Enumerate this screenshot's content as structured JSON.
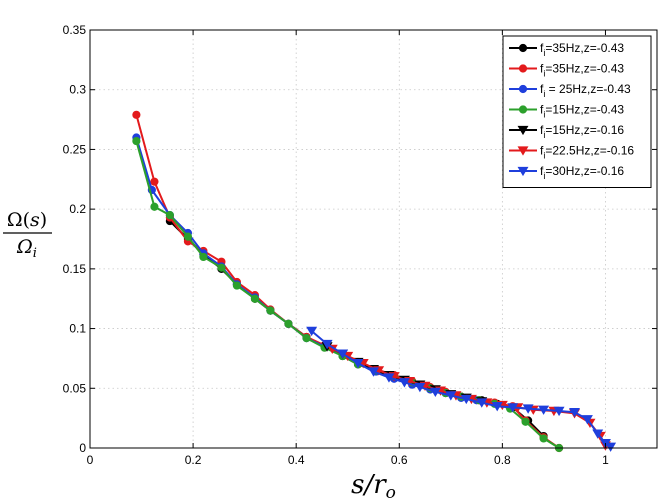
{
  "chart_data": {
    "type": "line",
    "xlim": [
      0,
      1.1
    ],
    "ylim": [
      0,
      0.35
    ],
    "xticks": [
      0,
      0.2,
      0.4,
      0.6,
      0.8,
      1
    ],
    "yticks": [
      0,
      0.05,
      0.1,
      0.15,
      0.2,
      0.25,
      0.3,
      0.35
    ],
    "xtick_labels": [
      "0",
      "0.2",
      "0.4",
      "0.6",
      "0.8",
      "1"
    ],
    "ytick_labels": [
      "0",
      "0.05",
      "0.1",
      "0.15",
      "0.2",
      "0.25",
      "0.3",
      "0.35"
    ],
    "grid": true,
    "legend_position": "top-right",
    "xlabel": "s/r_o",
    "ylabel_num": "Ω(s)",
    "ylabel_den": "Ω_i",
    "series": [
      {
        "name": "f_i=35Hz,z=-0.43",
        "color": "#000000",
        "marker": "circle",
        "x": [
          0.155,
          0.19,
          0.22,
          0.255,
          0.285,
          0.32,
          0.35,
          0.385,
          0.42,
          0.455,
          0.49,
          0.52,
          0.555,
          0.59,
          0.625,
          0.66,
          0.69,
          0.72,
          0.76,
          0.79,
          0.82,
          0.85,
          0.88
        ],
        "y": [
          0.19,
          0.175,
          0.162,
          0.15,
          0.137,
          0.125,
          0.115,
          0.104,
          0.093,
          0.085,
          0.077,
          0.07,
          0.065,
          0.059,
          0.055,
          0.05,
          0.046,
          0.043,
          0.04,
          0.037,
          0.034,
          0.023,
          0.01
        ]
      },
      {
        "name": "f_i=35Hz,z=-0.43",
        "color": "#e31a1c",
        "marker": "circle",
        "x": [
          0.09,
          0.125,
          0.155,
          0.19,
          0.22,
          0.255,
          0.285,
          0.32,
          0.35,
          0.385,
          0.42,
          0.455,
          0.49,
          0.52,
          0.555,
          0.59,
          0.625,
          0.66,
          0.69,
          0.72,
          0.755,
          0.785,
          0.82,
          0.845,
          0.88,
          0.91
        ],
        "y": [
          0.279,
          0.223,
          0.193,
          0.173,
          0.165,
          0.156,
          0.139,
          0.128,
          0.116,
          0.104,
          0.093,
          0.086,
          0.079,
          0.072,
          0.066,
          0.061,
          0.056,
          0.051,
          0.047,
          0.043,
          0.04,
          0.038,
          0.035,
          0.023,
          0.009,
          0.0
        ]
      },
      {
        "name": "f_i = 25Hz,z=-0.43",
        "color": "#1f3fdc",
        "marker": "circle",
        "x": [
          0.09,
          0.12,
          0.155,
          0.19,
          0.22,
          0.255,
          0.285,
          0.32,
          0.35,
          0.385,
          0.42,
          0.455,
          0.49,
          0.52,
          0.555,
          0.59,
          0.625,
          0.66,
          0.69,
          0.72,
          0.75
        ],
        "y": [
          0.26,
          0.216,
          0.195,
          0.18,
          0.163,
          0.152,
          0.137,
          0.126,
          0.115,
          0.104,
          0.092,
          0.085,
          0.078,
          0.071,
          0.064,
          0.058,
          0.053,
          0.049,
          0.046,
          0.042,
          0.04
        ]
      },
      {
        "name": "f_i=15Hz,z=-0.43",
        "color": "#2ca02c",
        "marker": "circle",
        "x": [
          0.09,
          0.125,
          0.155,
          0.19,
          0.22,
          0.255,
          0.285,
          0.32,
          0.35,
          0.385,
          0.42,
          0.455,
          0.49,
          0.52,
          0.555,
          0.59,
          0.625,
          0.66,
          0.69,
          0.72,
          0.755,
          0.785,
          0.815,
          0.845,
          0.88,
          0.91
        ],
        "y": [
          0.257,
          0.202,
          0.195,
          0.177,
          0.16,
          0.151,
          0.136,
          0.125,
          0.115,
          0.104,
          0.092,
          0.084,
          0.077,
          0.07,
          0.065,
          0.06,
          0.055,
          0.05,
          0.046,
          0.043,
          0.04,
          0.037,
          0.033,
          0.022,
          0.008,
          0.0
        ]
      },
      {
        "name": "f_i=15Hz,z=-0.16",
        "color": "#000000",
        "marker": "triangle-down",
        "x": [
          0.46,
          0.49,
          0.52,
          0.55,
          0.58,
          0.61,
          0.64,
          0.67,
          0.7,
          0.73,
          0.76
        ],
        "y": [
          0.085,
          0.079,
          0.072,
          0.066,
          0.061,
          0.057,
          0.053,
          0.049,
          0.045,
          0.042,
          0.039
        ]
      },
      {
        "name": "f_i=22.5Hz,z=-0.16",
        "color": "#e31a1c",
        "marker": "triangle-down",
        "x": [
          0.47,
          0.5,
          0.53,
          0.56,
          0.59,
          0.62,
          0.65,
          0.68,
          0.71,
          0.74,
          0.77,
          0.8,
          0.83,
          0.86,
          0.9,
          0.94,
          0.97,
          0.99,
          1.0
        ],
        "y": [
          0.083,
          0.077,
          0.071,
          0.065,
          0.06,
          0.056,
          0.052,
          0.048,
          0.044,
          0.041,
          0.038,
          0.036,
          0.034,
          0.032,
          0.031,
          0.029,
          0.021,
          0.01,
          0.002
        ]
      },
      {
        "name": "f_i=30Hz,z=-0.16",
        "color": "#1f3fdc",
        "marker": "triangle-down",
        "x": [
          0.43,
          0.46,
          0.49,
          0.52,
          0.55,
          0.58,
          0.61,
          0.64,
          0.67,
          0.7,
          0.73,
          0.76,
          0.79,
          0.82,
          0.85,
          0.88,
          0.91,
          0.94,
          0.965,
          0.985,
          1.0,
          1.01
        ],
        "y": [
          0.098,
          0.087,
          0.079,
          0.071,
          0.064,
          0.059,
          0.055,
          0.051,
          0.047,
          0.044,
          0.041,
          0.038,
          0.035,
          0.034,
          0.033,
          0.032,
          0.031,
          0.03,
          0.024,
          0.012,
          0.004,
          0.001
        ]
      }
    ]
  }
}
